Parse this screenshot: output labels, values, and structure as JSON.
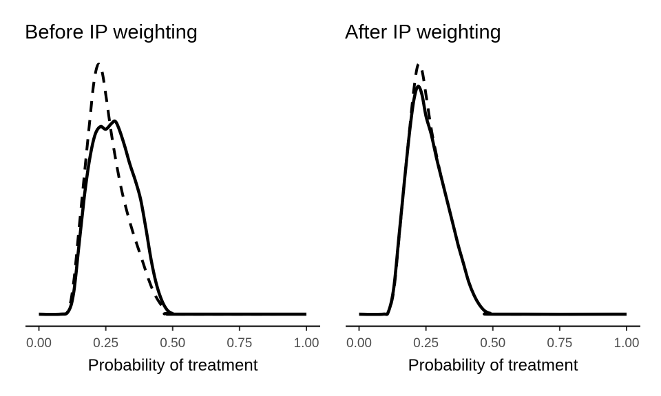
{
  "chart_data": [
    {
      "type": "line",
      "title": "Before IP weighting",
      "xlabel": "Probability of treatment",
      "ylabel": "",
      "xlim": [
        0,
        1
      ],
      "ylim": [
        0,
        9.8
      ],
      "x_ticks": [
        0,
        0.25,
        0.5,
        0.75,
        1.0
      ],
      "x_tick_labels": [
        "0.00",
        "0.25",
        "0.50",
        "0.75",
        "1.00"
      ],
      "grid": false,
      "legend": "none",
      "series": [
        {
          "name": "solid",
          "style": "solid",
          "x": [
            0.0,
            0.08,
            0.11,
            0.13,
            0.15,
            0.17,
            0.19,
            0.21,
            0.23,
            0.25,
            0.27,
            0.285,
            0.3,
            0.32,
            0.34,
            0.36,
            0.38,
            0.4,
            0.42,
            0.44,
            0.46,
            0.48,
            0.5,
            0.52,
            1.0
          ],
          "y": [
            0.0,
            0.0,
            0.1,
            0.8,
            2.6,
            4.4,
            5.8,
            6.7,
            7.0,
            6.9,
            7.1,
            7.2,
            6.9,
            6.3,
            5.6,
            5.0,
            4.3,
            3.2,
            2.0,
            1.1,
            0.5,
            0.15,
            0.02,
            0.0,
            0.0
          ]
        },
        {
          "name": "dashed",
          "style": "dashed",
          "x": [
            0.0,
            0.08,
            0.11,
            0.13,
            0.15,
            0.17,
            0.19,
            0.205,
            0.22,
            0.235,
            0.25,
            0.27,
            0.29,
            0.31,
            0.33,
            0.35,
            0.37,
            0.39,
            0.41,
            0.43,
            0.45,
            0.47,
            0.49,
            0.51,
            1.0
          ],
          "y": [
            0.0,
            0.0,
            0.15,
            1.2,
            3.2,
            5.2,
            7.2,
            8.6,
            9.3,
            9.1,
            8.2,
            6.8,
            5.6,
            4.6,
            3.8,
            3.1,
            2.5,
            1.9,
            1.3,
            0.8,
            0.45,
            0.2,
            0.06,
            0.0,
            0.0
          ]
        }
      ]
    },
    {
      "type": "line",
      "title": "After IP weighting",
      "xlabel": "Probability of treatment",
      "ylabel": "",
      "xlim": [
        0,
        1
      ],
      "ylim": [
        0,
        9.8
      ],
      "x_ticks": [
        0,
        0.25,
        0.5,
        0.75,
        1.0
      ],
      "x_tick_labels": [
        "0.00",
        "0.25",
        "0.50",
        "0.75",
        "1.00"
      ],
      "grid": false,
      "legend": "none",
      "series": [
        {
          "name": "solid",
          "style": "solid",
          "x": [
            0.0,
            0.09,
            0.11,
            0.13,
            0.15,
            0.17,
            0.19,
            0.205,
            0.22,
            0.235,
            0.25,
            0.27,
            0.29,
            0.31,
            0.33,
            0.35,
            0.37,
            0.39,
            0.41,
            0.43,
            0.45,
            0.47,
            0.49,
            0.51,
            1.0
          ],
          "y": [
            0.0,
            0.0,
            0.1,
            1.0,
            3.0,
            5.0,
            6.9,
            8.0,
            8.5,
            8.2,
            7.4,
            6.7,
            5.8,
            5.0,
            4.2,
            3.4,
            2.6,
            1.9,
            1.2,
            0.7,
            0.35,
            0.12,
            0.03,
            0.0,
            0.0
          ]
        },
        {
          "name": "dashed",
          "style": "dashed",
          "x": [
            0.0,
            0.09,
            0.11,
            0.13,
            0.15,
            0.17,
            0.19,
            0.205,
            0.22,
            0.235,
            0.25,
            0.27,
            0.29,
            0.31,
            0.33,
            0.35,
            0.37,
            0.39,
            0.41,
            0.43,
            0.45,
            0.47,
            0.49,
            0.51,
            1.0
          ],
          "y": [
            0.0,
            0.0,
            0.1,
            0.9,
            2.9,
            5.0,
            7.0,
            8.4,
            9.3,
            9.1,
            8.2,
            6.9,
            5.9,
            5.0,
            4.2,
            3.4,
            2.6,
            1.9,
            1.2,
            0.7,
            0.35,
            0.12,
            0.03,
            0.0,
            0.0
          ]
        }
      ]
    }
  ]
}
